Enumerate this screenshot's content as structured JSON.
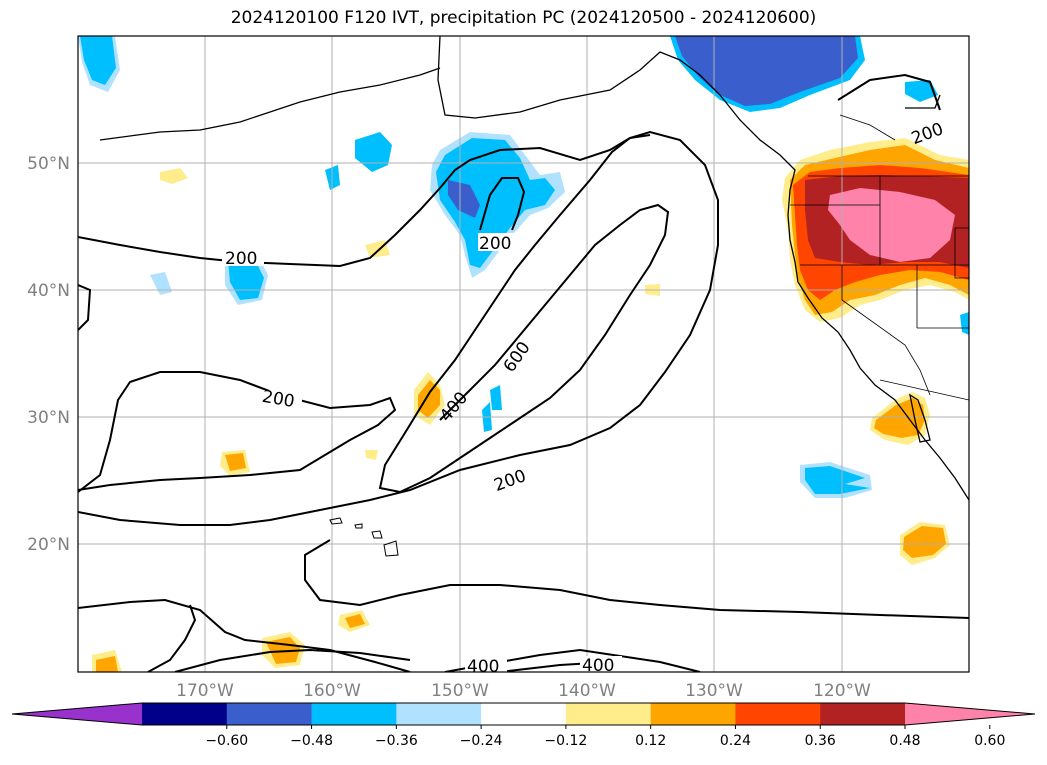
{
  "title": "2024120100 F120 IVT, precipitation PC (2024120500 - 2024120600)",
  "map": {
    "lon_labels": [
      "170°W",
      "160°W",
      "150°W",
      "140°W",
      "130°W",
      "120°W"
    ],
    "lat_labels": [
      "50°N",
      "40°N",
      "30°N",
      "20°N"
    ],
    "contour_labels": [
      "200",
      "200",
      "200",
      "200",
      "400",
      "600",
      "200",
      "400",
      "400"
    ],
    "gridlines": true
  },
  "colorbar": {
    "ticks": [
      "−0.60",
      "−0.48",
      "−0.36",
      "−0.24",
      "−0.12",
      "0.12",
      "0.24",
      "0.36",
      "0.48",
      "0.60"
    ],
    "colors": [
      "#9932cc",
      "#00008b",
      "#3a5fcd",
      "#00bfff",
      "#b0e2ff",
      "#ffffff",
      "#ffec8b",
      "#ffa500",
      "#ff4500",
      "#b22222",
      "#ff82ab"
    ],
    "extend": "both"
  },
  "chart_data": {
    "type": "heatmap",
    "title": "2024120100 F120 IVT, precipitation PC (2024120500 - 2024120600)",
    "xlabel": "",
    "ylabel": "",
    "x_ticks": [
      "170°W",
      "160°W",
      "150°W",
      "140°W",
      "130°W",
      "120°W"
    ],
    "y_ticks": [
      "50°N",
      "40°N",
      "30°N",
      "20°N"
    ],
    "xlim": [
      -180,
      -110
    ],
    "ylim": [
      10,
      60
    ],
    "contour_levels": [
      200,
      400,
      600
    ],
    "colorbar_levels": [
      -0.6,
      -0.48,
      -0.36,
      -0.24,
      -0.12,
      0.12,
      0.24,
      0.36,
      0.48,
      0.6
    ],
    "grid": true
  }
}
